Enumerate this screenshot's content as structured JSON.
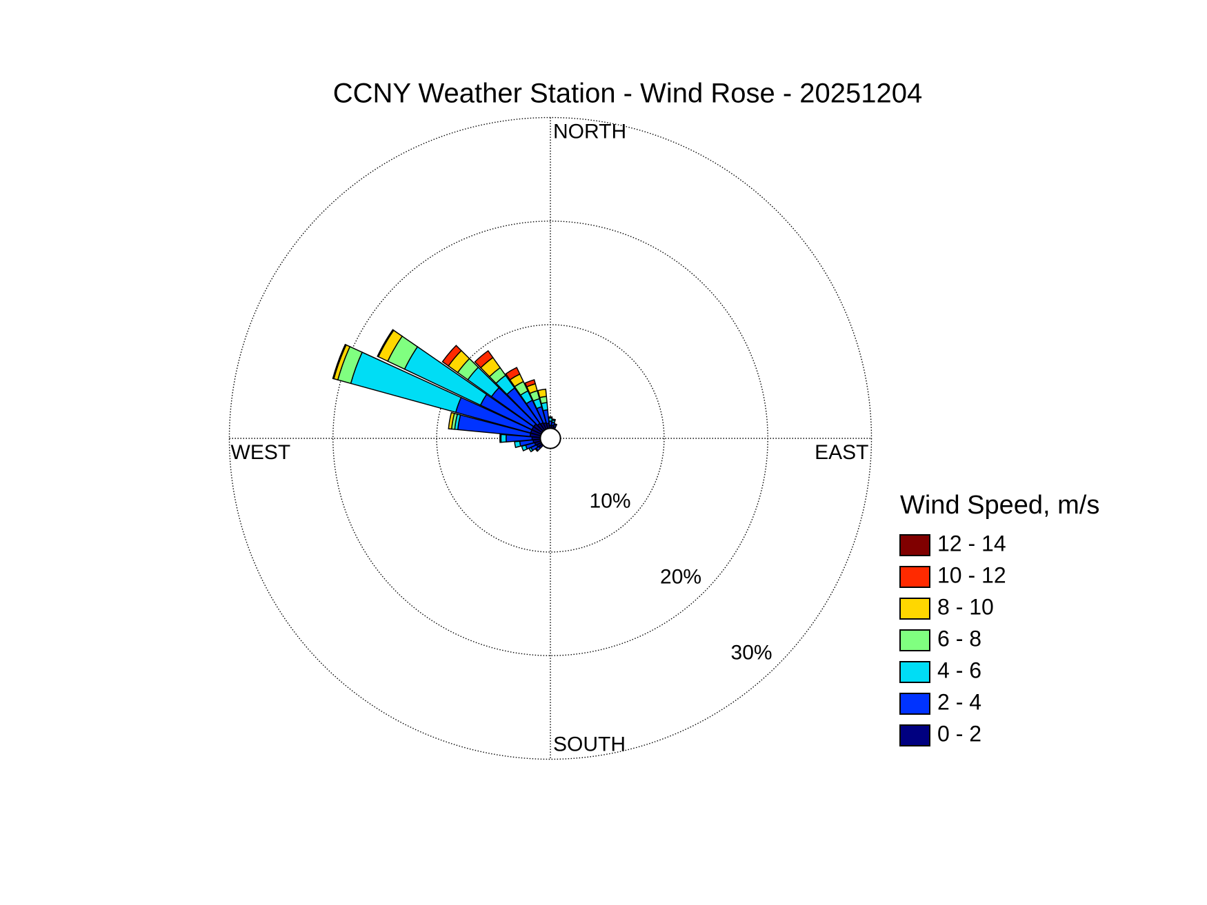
{
  "chart_data": {
    "type": "windrose",
    "title": "CCNY Weather Station - Wind Rose - 20251204",
    "direction_labels": [
      "NORTH",
      "EAST",
      "SOUTH",
      "WEST"
    ],
    "rlim": [
      0,
      30
    ],
    "rticks": [
      {
        "value": 10,
        "label": "10%"
      },
      {
        "value": 20,
        "label": "20%"
      },
      {
        "value": 30,
        "label": "30%"
      }
    ],
    "grid": true,
    "legend_title": "Wind Speed, m/s",
    "directions": [
      230,
      240,
      250,
      260,
      270,
      280,
      290,
      300,
      310,
      320,
      330,
      340,
      350,
      0,
      10,
      20
    ],
    "series": [
      {
        "name": "0 - 2",
        "color": "#000080",
        "values": [
          0.4,
          0.5,
          0.6,
          0.7,
          0.8,
          1.0,
          1.0,
          1.0,
          1.0,
          0.8,
          0.7,
          0.6,
          0.5,
          0.3,
          0.3,
          0.2
        ]
      },
      {
        "name": "2 - 4",
        "color": "#0033ff",
        "values": [
          0.3,
          0.6,
          0.9,
          1.3,
          2.5,
          7.0,
          7.5,
          5.5,
          5.0,
          4.2,
          2.4,
          1.6,
          1.3,
          0.4,
          0.3,
          0.2
        ]
      },
      {
        "name": "4 - 6",
        "color": "#00ddf5",
        "values": [
          0.1,
          0.2,
          0.4,
          0.5,
          0.5,
          0.3,
          10.5,
          8.1,
          2.8,
          1.5,
          1.0,
          0.8,
          0.7,
          0.3,
          0.2,
          0.1
        ]
      },
      {
        "name": "6 - 8",
        "color": "#80ff80",
        "values": [
          0,
          0,
          0,
          0,
          0.1,
          0.3,
          1.3,
          1.8,
          1.2,
          0.9,
          1.0,
          0.8,
          0.6,
          0.1,
          0.1,
          0
        ]
      },
      {
        "name": "8 - 10",
        "color": "#ffd700",
        "values": [
          0,
          0,
          0,
          0,
          0,
          0.3,
          0.4,
          1.0,
          1.1,
          1.2,
          0.8,
          0.7,
          0.7,
          0,
          0,
          0
        ]
      },
      {
        "name": "10 - 12",
        "color": "#ff2a00",
        "values": [
          0,
          0,
          0,
          0,
          0,
          0,
          0.1,
          0.1,
          0.7,
          0.8,
          0.7,
          0.4,
          0,
          0,
          0,
          0
        ]
      },
      {
        "name": "12 - 14",
        "color": "#800000",
        "values": [
          0,
          0,
          0,
          0,
          0,
          0,
          0,
          0,
          0,
          0,
          0,
          0,
          0,
          0,
          0,
          0
        ]
      }
    ]
  }
}
